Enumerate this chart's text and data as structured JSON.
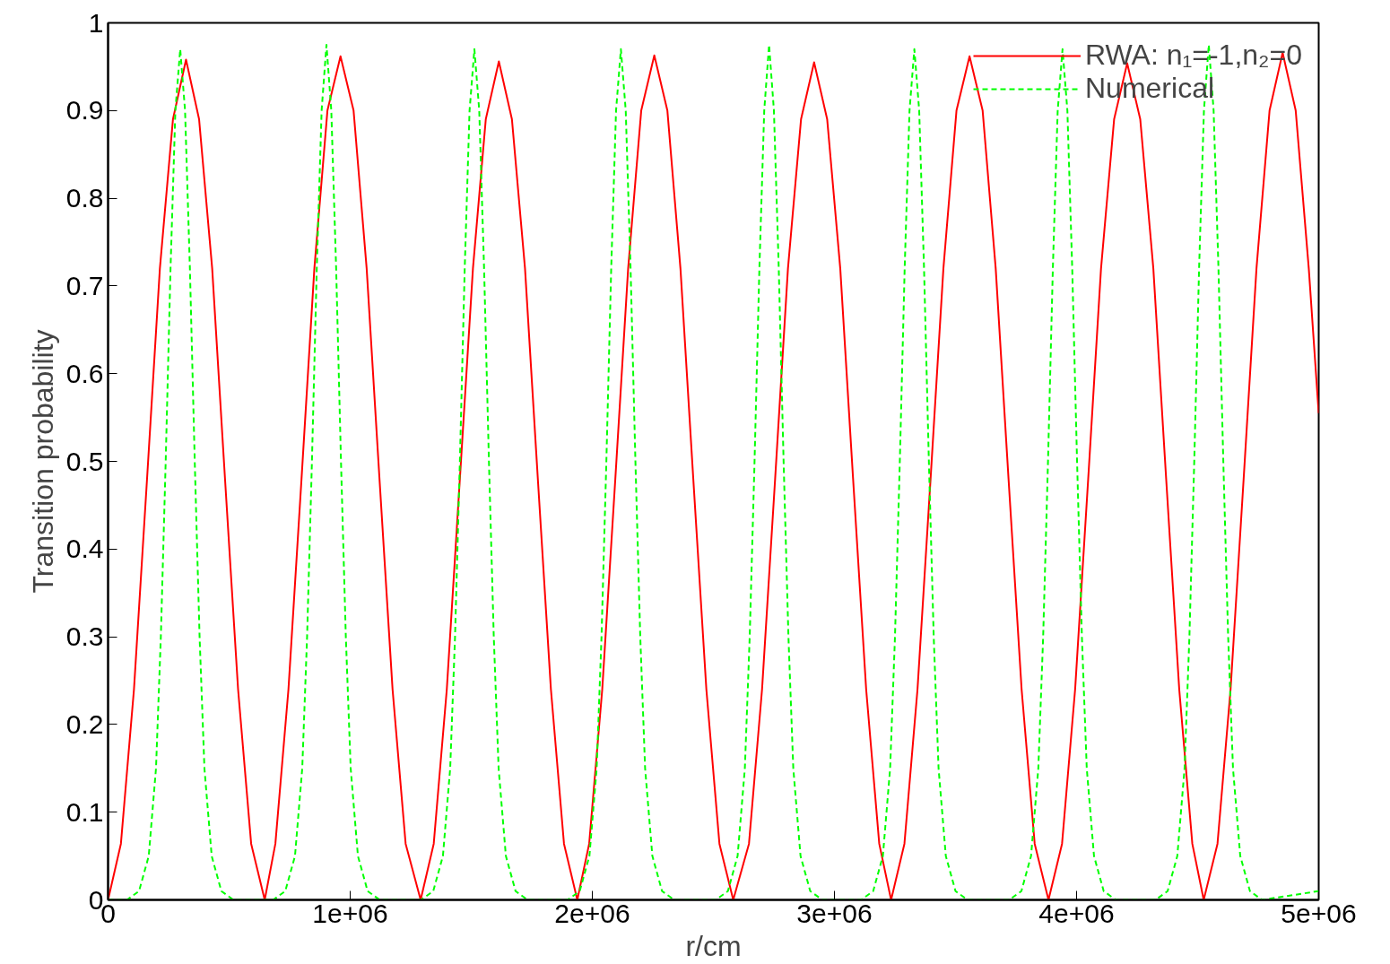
{
  "chart_data": {
    "type": "line",
    "xlabel": "r/cm",
    "ylabel": "Transition probability",
    "xlim": [
      0,
      5000000
    ],
    "ylim": [
      0,
      1
    ],
    "xticks": [
      0,
      {
        "value": 1000000,
        "label": "1e+06"
      },
      {
        "value": 2000000,
        "label": "2e+06"
      },
      {
        "value": 3000000,
        "label": "3e+06"
      },
      {
        "value": 4000000,
        "label": "4e+06"
      },
      {
        "value": 5000000,
        "label": "5e+06"
      }
    ],
    "yticks": [
      0,
      0.1,
      0.2,
      0.3,
      0.4,
      0.5,
      0.6,
      0.7,
      0.8,
      0.9,
      1
    ],
    "grid": false,
    "legend": "top right",
    "series": [
      {
        "name": "RWA: n₁=-1,n₂=0",
        "color": "#ff0000",
        "line_style": "solid",
        "x": [
          0,
          53000,
          107000,
          161000,
          214000,
          268000,
          322000,
          376000,
          430000,
          483000,
          537000,
          591000,
          647000,
          691000,
          745000,
          799000,
          852000,
          906000,
          960000,
          1014000,
          1068000,
          1121000,
          1175000,
          1229000,
          1291000,
          1345000,
          1399000,
          1453000,
          1507000,
          1560000,
          1614000,
          1668000,
          1722000,
          1775000,
          1829000,
          1883000,
          1938000,
          1987000,
          2041000,
          2095000,
          2148000,
          2202000,
          2256000,
          2310000,
          2364000,
          2417000,
          2471000,
          2525000,
          2582000,
          2647000,
          2701000,
          2755000,
          2808000,
          2862000,
          2916000,
          2970000,
          3024000,
          3077000,
          3131000,
          3185000,
          3234000,
          3289000,
          3343000,
          3397000,
          3450000,
          3504000,
          3558000,
          3612000,
          3666000,
          3719000,
          3773000,
          3827000,
          3884000,
          3940000,
          3994000,
          4048000,
          4101000,
          4155000,
          4209000,
          4263000,
          4317000,
          4370000,
          4424000,
          4478000,
          4525000,
          4582000,
          4636000,
          4690000,
          4743000,
          4797000,
          4851000,
          4905000,
          4959000,
          5000000
        ],
        "values": [
          0,
          0.064,
          0.24,
          0.48,
          0.72,
          0.89,
          0.958,
          0.89,
          0.72,
          0.48,
          0.24,
          0.064,
          0,
          0.064,
          0.24,
          0.48,
          0.72,
          0.9,
          0.962,
          0.9,
          0.72,
          0.48,
          0.24,
          0.064,
          0,
          0.064,
          0.24,
          0.48,
          0.72,
          0.89,
          0.956,
          0.89,
          0.72,
          0.48,
          0.24,
          0.064,
          0,
          0.064,
          0.24,
          0.48,
          0.72,
          0.9,
          0.963,
          0.9,
          0.72,
          0.48,
          0.24,
          0.064,
          0,
          0.064,
          0.24,
          0.48,
          0.72,
          0.89,
          0.955,
          0.89,
          0.72,
          0.48,
          0.24,
          0.064,
          0,
          0.064,
          0.24,
          0.48,
          0.72,
          0.9,
          0.962,
          0.9,
          0.72,
          0.48,
          0.24,
          0.064,
          0,
          0.064,
          0.24,
          0.48,
          0.72,
          0.89,
          0.954,
          0.89,
          0.72,
          0.48,
          0.24,
          0.064,
          0,
          0.064,
          0.24,
          0.48,
          0.72,
          0.9,
          0.966,
          0.9,
          0.72,
          0.555
        ]
      },
      {
        "name": "Numerical",
        "color": "#00ff00",
        "line_style": "dashed",
        "x": [
          0,
          78000,
          128000,
          168000,
          198000,
          218000,
          238000,
          258000,
          278000,
          298000,
          318000,
          338000,
          358000,
          378000,
          398000,
          428000,
          468000,
          518000,
          682000,
          732000,
          772000,
          802000,
          822000,
          842000,
          862000,
          882000,
          902000,
          922000,
          942000,
          962000,
          982000,
          1002000,
          1032000,
          1072000,
          1122000,
          1293000,
          1343000,
          1383000,
          1413000,
          1433000,
          1453000,
          1473000,
          1493000,
          1513000,
          1533000,
          1553000,
          1573000,
          1593000,
          1613000,
          1643000,
          1683000,
          1733000,
          1898000,
          1948000,
          1988000,
          2018000,
          2038000,
          2058000,
          2078000,
          2098000,
          2118000,
          2138000,
          2158000,
          2178000,
          2198000,
          2218000,
          2248000,
          2288000,
          2338000,
          2510000,
          2560000,
          2600000,
          2630000,
          2650000,
          2670000,
          2690000,
          2710000,
          2730000,
          2750000,
          2770000,
          2790000,
          2810000,
          2830000,
          2860000,
          2900000,
          2950000,
          3110000,
          3160000,
          3200000,
          3230000,
          3250000,
          3270000,
          3290000,
          3310000,
          3330000,
          3350000,
          3370000,
          3390000,
          3410000,
          3430000,
          3460000,
          3500000,
          3550000,
          3722000,
          3772000,
          3812000,
          3842000,
          3862000,
          3882000,
          3902000,
          3922000,
          3942000,
          3962000,
          3982000,
          4002000,
          4022000,
          4042000,
          4072000,
          4112000,
          4162000,
          4326000,
          4376000,
          4416000,
          4446000,
          4466000,
          4486000,
          4506000,
          4526000,
          4546000,
          4566000,
          4586000,
          4606000,
          4626000,
          4646000,
          4676000,
          4716000,
          4766000,
          5000000
        ],
        "values": [
          0,
          0,
          0.01,
          0.05,
          0.15,
          0.3,
          0.5,
          0.72,
          0.9,
          0.97,
          0.9,
          0.72,
          0.5,
          0.3,
          0.15,
          0.05,
          0.01,
          0,
          0,
          0.01,
          0.05,
          0.15,
          0.3,
          0.5,
          0.72,
          0.9,
          0.975,
          0.9,
          0.72,
          0.5,
          0.3,
          0.15,
          0.05,
          0.01,
          0,
          0,
          0.01,
          0.05,
          0.15,
          0.3,
          0.5,
          0.72,
          0.9,
          0.97,
          0.9,
          0.72,
          0.5,
          0.3,
          0.15,
          0.05,
          0.01,
          0,
          0,
          0.01,
          0.05,
          0.15,
          0.3,
          0.5,
          0.72,
          0.9,
          0.97,
          0.9,
          0.72,
          0.5,
          0.3,
          0.15,
          0.05,
          0.01,
          0,
          0,
          0.01,
          0.05,
          0.15,
          0.3,
          0.5,
          0.72,
          0.9,
          0.975,
          0.9,
          0.72,
          0.5,
          0.3,
          0.15,
          0.05,
          0.01,
          0,
          0,
          0.01,
          0.05,
          0.15,
          0.3,
          0.5,
          0.72,
          0.9,
          0.97,
          0.9,
          0.72,
          0.5,
          0.3,
          0.15,
          0.05,
          0.01,
          0,
          0,
          0.01,
          0.05,
          0.15,
          0.3,
          0.5,
          0.72,
          0.9,
          0.97,
          0.9,
          0.72,
          0.5,
          0.3,
          0.15,
          0.05,
          0.01,
          0,
          0,
          0.01,
          0.05,
          0.15,
          0.3,
          0.5,
          0.72,
          0.9,
          0.975,
          0.9,
          0.72,
          0.5,
          0.3,
          0.15,
          0.05,
          0.01,
          0,
          0.01
        ]
      }
    ]
  }
}
